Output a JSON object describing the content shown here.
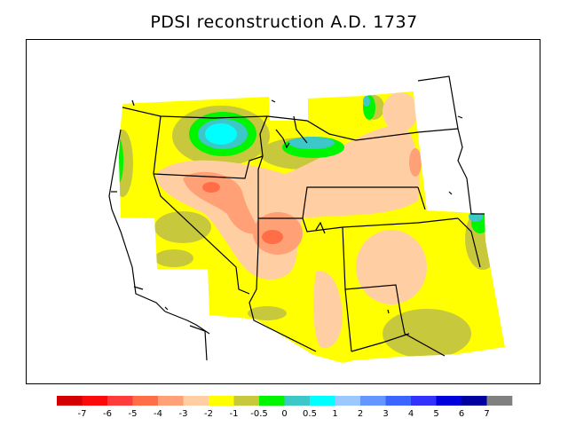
{
  "title": "PDSI reconstruction A.D. 1737",
  "legend": {
    "bins": [
      {
        "color": "#d20000",
        "name": "bin-lt-m7"
      },
      {
        "color": "#fa0a0a",
        "name": "bin-m7-m6"
      },
      {
        "color": "#ff3c3c",
        "name": "bin-m6-m5"
      },
      {
        "color": "#ff6e46",
        "name": "bin-m5-m4"
      },
      {
        "color": "#ffa077",
        "name": "bin-m4-m3"
      },
      {
        "color": "#ffcfa3",
        "name": "bin-m3-m2"
      },
      {
        "color": "#ffff00",
        "name": "bin-m2-m1"
      },
      {
        "color": "#c8c83c",
        "name": "bin-m1-m05"
      },
      {
        "color": "#00f500",
        "name": "bin-m05-0"
      },
      {
        "color": "#3cc8c8",
        "name": "bin-0-05"
      },
      {
        "color": "#00ffff",
        "name": "bin-05-1"
      },
      {
        "color": "#9bc8ff",
        "name": "bin-1-2"
      },
      {
        "color": "#6496ff",
        "name": "bin-2-3"
      },
      {
        "color": "#3c64ff",
        "name": "bin-3-4"
      },
      {
        "color": "#3232ff",
        "name": "bin-4-5"
      },
      {
        "color": "#0000dc",
        "name": "bin-5-6"
      },
      {
        "color": "#0000a0",
        "name": "bin-6-7"
      },
      {
        "color": "#808080",
        "name": "bin-gt-7"
      }
    ],
    "ticks": [
      "-7",
      "-6",
      "-5",
      "-4",
      "-3",
      "-2",
      "-1",
      "-0.5",
      "0",
      "0.5",
      "1",
      "2",
      "3",
      "4",
      "5",
      "6",
      "7"
    ]
  }
}
